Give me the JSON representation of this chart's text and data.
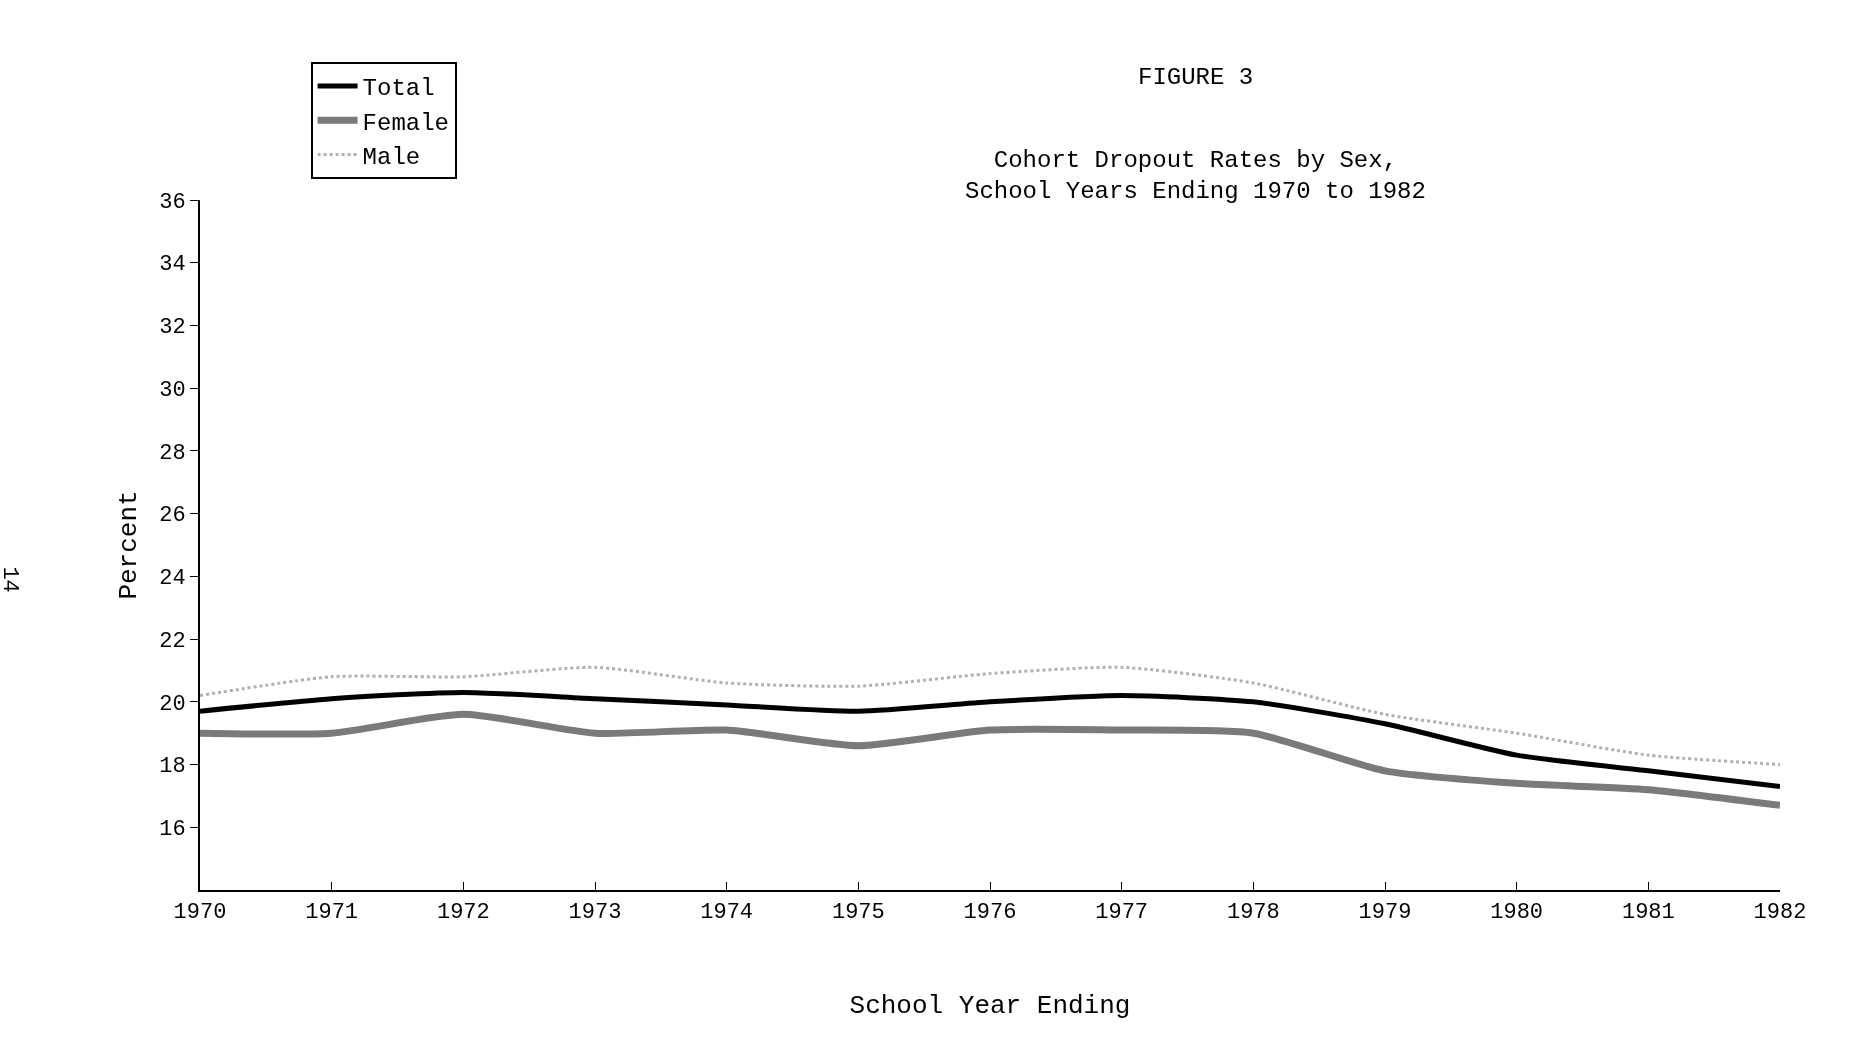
{
  "chart_data": {
    "type": "line",
    "title": "FIGURE 3",
    "subtitle": "Cohort Dropout Rates by Sex,\nSchool Years Ending 1970 to 1982",
    "xlabel": "School Year Ending",
    "ylabel": "Percent",
    "x": [
      1970,
      1971,
      1972,
      1973,
      1974,
      1975,
      1976,
      1977,
      1978,
      1979,
      1980,
      1981,
      1982
    ],
    "series": [
      {
        "name": "Total",
        "color": "#000000",
        "line_style": "solid",
        "values": [
          19.7,
          20.1,
          20.3,
          20.1,
          19.9,
          19.7,
          20.0,
          20.2,
          20.0,
          19.3,
          18.3,
          17.8,
          17.3
        ]
      },
      {
        "name": "Female",
        "color": "#7a7a7a",
        "line_style": "solid",
        "values": [
          19.0,
          19.0,
          19.6,
          19.0,
          19.1,
          18.6,
          19.1,
          19.1,
          19.0,
          17.8,
          17.4,
          17.2,
          16.7
        ]
      },
      {
        "name": "Male",
        "color": "#b0b0b0",
        "line_style": "dotted",
        "values": [
          20.2,
          20.8,
          20.8,
          21.1,
          20.6,
          20.5,
          20.9,
          21.1,
          20.6,
          19.6,
          19.0,
          18.3,
          18.0
        ]
      }
    ],
    "xlim": [
      1970,
      1982
    ],
    "xticks": [
      1970,
      1971,
      1972,
      1973,
      1974,
      1975,
      1976,
      1977,
      1978,
      1979,
      1980,
      1981,
      1982
    ],
    "ylim": [
      14,
      36
    ],
    "yticks": [
      16,
      18,
      20,
      22,
      24,
      26,
      28,
      30,
      32,
      34,
      36
    ],
    "legend": "top left",
    "marker": "none",
    "annotations": [
      "14"
    ]
  }
}
